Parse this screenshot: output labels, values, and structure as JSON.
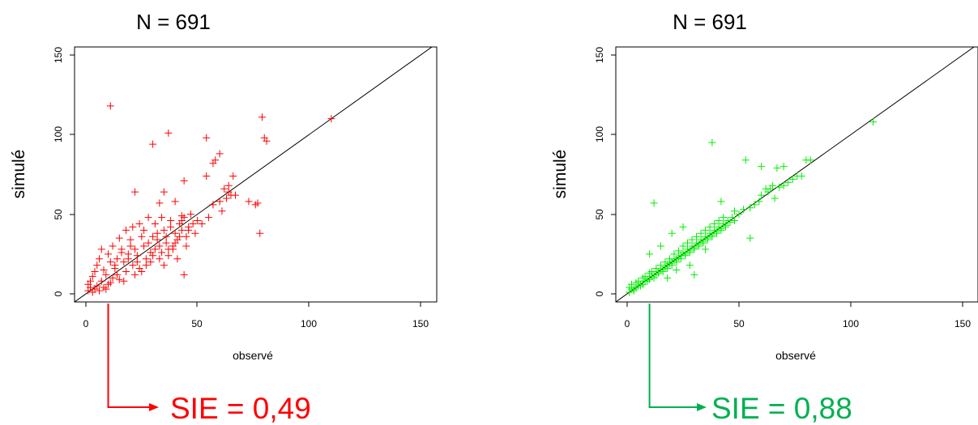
{
  "chart_data": [
    {
      "type": "scatter",
      "title": "N = 691",
      "xlabel": "observé",
      "ylabel": "simulé",
      "xlim": [
        0,
        150
      ],
      "ylim": [
        0,
        150
      ],
      "xticks": [
        "0",
        "50",
        "100",
        "150"
      ],
      "yticks": [
        "0",
        "50",
        "100",
        "150"
      ],
      "marker": "+",
      "color": "#ff0000",
      "reference_line": "y = x",
      "annotation": "SIE = 0,49",
      "annotation_color": "#ff0000",
      "annotation_anchor_x": 10,
      "points": [
        [
          1,
          2
        ],
        [
          2,
          4
        ],
        [
          3,
          1
        ],
        [
          1,
          6
        ],
        [
          4,
          3
        ],
        [
          2,
          8
        ],
        [
          5,
          5
        ],
        [
          3,
          11
        ],
        [
          6,
          2
        ],
        [
          4,
          14
        ],
        [
          7,
          8
        ],
        [
          5,
          18
        ],
        [
          8,
          4
        ],
        [
          6,
          22
        ],
        [
          9,
          12
        ],
        [
          7,
          28
        ],
        [
          10,
          6
        ],
        [
          8,
          15
        ],
        [
          11,
          20
        ],
        [
          9,
          3
        ],
        [
          12,
          10
        ],
        [
          10,
          25
        ],
        [
          13,
          16
        ],
        [
          11,
          7
        ],
        [
          14,
          22
        ],
        [
          12,
          30
        ],
        [
          15,
          9
        ],
        [
          13,
          18
        ],
        [
          16,
          26
        ],
        [
          14,
          12
        ],
        [
          17,
          20
        ],
        [
          15,
          35
        ],
        [
          18,
          14
        ],
        [
          16,
          28
        ],
        [
          19,
          22
        ],
        [
          17,
          8
        ],
        [
          20,
          30
        ],
        [
          18,
          40
        ],
        [
          21,
          18
        ],
        [
          19,
          25
        ],
        [
          22,
          12
        ],
        [
          20,
          34
        ],
        [
          23,
          24
        ],
        [
          21,
          42
        ],
        [
          24,
          16
        ],
        [
          22,
          28
        ],
        [
          25,
          36
        ],
        [
          23,
          20
        ],
        [
          26,
          30
        ],
        [
          24,
          44
        ],
        [
          27,
          22
        ],
        [
          25,
          14
        ],
        [
          28,
          32
        ],
        [
          26,
          40
        ],
        [
          29,
          26
        ],
        [
          27,
          18
        ],
        [
          30,
          36
        ],
        [
          28,
          48
        ],
        [
          31,
          28
        ],
        [
          29,
          20
        ],
        [
          32,
          38
        ],
        [
          30,
          24
        ],
        [
          33,
          30
        ],
        [
          31,
          44
        ],
        [
          34,
          26
        ],
        [
          32,
          34
        ],
        [
          35,
          40
        ],
        [
          33,
          22
        ],
        [
          36,
          32
        ],
        [
          34,
          48
        ],
        [
          37,
          28
        ],
        [
          35,
          18
        ],
        [
          38,
          42
        ],
        [
          36,
          36
        ],
        [
          39,
          30
        ],
        [
          37,
          24
        ],
        [
          40,
          38
        ],
        [
          38,
          46
        ],
        [
          41,
          34
        ],
        [
          39,
          28
        ],
        [
          42,
          44
        ],
        [
          40,
          32
        ],
        [
          43,
          40
        ],
        [
          41,
          22
        ],
        [
          44,
          48
        ],
        [
          42,
          36
        ],
        [
          45,
          30
        ],
        [
          43,
          46
        ],
        [
          46,
          42
        ],
        [
          44,
          12
        ],
        [
          47,
          50
        ],
        [
          46,
          40
        ],
        [
          48,
          44
        ],
        [
          45,
          36
        ],
        [
          50,
          46
        ],
        [
          49,
          38
        ],
        [
          52,
          44
        ],
        [
          55,
          48
        ],
        [
          57,
          56
        ],
        [
          60,
          58
        ],
        [
          62,
          66
        ],
        [
          61,
          52
        ],
        [
          63,
          60
        ],
        [
          64,
          68
        ],
        [
          65,
          62
        ],
        [
          66,
          74
        ],
        [
          64,
          64
        ],
        [
          67,
          62
        ],
        [
          58,
          84
        ],
        [
          60,
          88
        ],
        [
          54,
          74
        ],
        [
          54,
          98
        ],
        [
          57,
          82
        ],
        [
          44,
          71
        ],
        [
          37,
          101
        ],
        [
          30,
          94
        ],
        [
          40,
          58
        ],
        [
          35,
          64
        ],
        [
          43,
          49
        ],
        [
          33,
          57
        ],
        [
          76,
          56
        ],
        [
          78,
          38
        ],
        [
          77,
          57
        ],
        [
          73,
          58
        ],
        [
          79,
          111
        ],
        [
          81,
          96
        ],
        [
          80,
          98
        ],
        [
          110,
          110
        ],
        [
          11,
          118
        ],
        [
          22,
          64
        ]
      ]
    },
    {
      "type": "scatter",
      "title": "N = 691",
      "xlabel": "observé",
      "ylabel": "simulé",
      "xlim": [
        0,
        150
      ],
      "ylim": [
        0,
        150
      ],
      "xticks": [
        "0",
        "50",
        "100",
        "150"
      ],
      "yticks": [
        "0",
        "50",
        "100",
        "150"
      ],
      "marker": "+",
      "color": "#00ee00",
      "reference_line": "y = x",
      "annotation": "SIE = 0,88",
      "annotation_color": "#00b050",
      "annotation_anchor_x": 10,
      "points": [
        [
          1,
          1
        ],
        [
          2,
          3
        ],
        [
          3,
          2
        ],
        [
          1,
          4
        ],
        [
          4,
          4
        ],
        [
          2,
          6
        ],
        [
          5,
          5
        ],
        [
          3,
          3
        ],
        [
          6,
          6
        ],
        [
          4,
          7
        ],
        [
          7,
          6
        ],
        [
          5,
          8
        ],
        [
          8,
          8
        ],
        [
          6,
          5
        ],
        [
          9,
          9
        ],
        [
          7,
          10
        ],
        [
          10,
          9
        ],
        [
          8,
          11
        ],
        [
          11,
          11
        ],
        [
          9,
          8
        ],
        [
          12,
          12
        ],
        [
          10,
          13
        ],
        [
          13,
          12
        ],
        [
          11,
          14
        ],
        [
          14,
          14
        ],
        [
          12,
          10
        ],
        [
          15,
          15
        ],
        [
          13,
          16
        ],
        [
          16,
          15
        ],
        [
          14,
          13
        ],
        [
          17,
          17
        ],
        [
          15,
          18
        ],
        [
          18,
          18
        ],
        [
          16,
          14
        ],
        [
          19,
          19
        ],
        [
          17,
          20
        ],
        [
          20,
          20
        ],
        [
          18,
          16
        ],
        [
          21,
          21
        ],
        [
          19,
          22
        ],
        [
          22,
          22
        ],
        [
          20,
          18
        ],
        [
          23,
          23
        ],
        [
          21,
          25
        ],
        [
          24,
          24
        ],
        [
          22,
          20
        ],
        [
          25,
          26
        ],
        [
          23,
          27
        ],
        [
          26,
          25
        ],
        [
          24,
          22
        ],
        [
          27,
          28
        ],
        [
          25,
          30
        ],
        [
          28,
          27
        ],
        [
          26,
          24
        ],
        [
          29,
          30
        ],
        [
          27,
          32
        ],
        [
          30,
          29
        ],
        [
          28,
          26
        ],
        [
          31,
          32
        ],
        [
          29,
          34
        ],
        [
          32,
          31
        ],
        [
          30,
          28
        ],
        [
          33,
          34
        ],
        [
          31,
          36
        ],
        [
          34,
          33
        ],
        [
          32,
          30
        ],
        [
          35,
          36
        ],
        [
          33,
          38
        ],
        [
          36,
          35
        ],
        [
          34,
          32
        ],
        [
          37,
          38
        ],
        [
          35,
          40
        ],
        [
          38,
          37
        ],
        [
          36,
          34
        ],
        [
          39,
          40
        ],
        [
          37,
          42
        ],
        [
          40,
          39
        ],
        [
          38,
          36
        ],
        [
          41,
          42
        ],
        [
          39,
          44
        ],
        [
          42,
          41
        ],
        [
          40,
          38
        ],
        [
          43,
          44
        ],
        [
          41,
          46
        ],
        [
          44,
          43
        ],
        [
          42,
          40
        ],
        [
          45,
          46
        ],
        [
          43,
          48
        ],
        [
          46,
          45
        ],
        [
          44,
          42
        ],
        [
          47,
          48
        ],
        [
          48,
          46
        ],
        [
          50,
          50
        ],
        [
          52,
          53
        ],
        [
          55,
          54
        ],
        [
          57,
          56
        ],
        [
          59,
          58
        ],
        [
          60,
          62
        ],
        [
          62,
          66
        ],
        [
          63,
          64
        ],
        [
          64,
          66
        ],
        [
          65,
          68
        ],
        [
          66,
          60
        ],
        [
          68,
          67
        ],
        [
          70,
          68
        ],
        [
          72,
          70
        ],
        [
          74,
          72
        ],
        [
          76,
          74
        ],
        [
          78,
          74
        ],
        [
          80,
          84
        ],
        [
          82,
          84
        ],
        [
          110,
          108
        ],
        [
          38,
          95
        ],
        [
          53,
          84
        ],
        [
          60,
          80
        ],
        [
          55,
          35
        ],
        [
          48,
          52
        ],
        [
          42,
          58
        ],
        [
          70,
          80
        ],
        [
          67,
          79
        ],
        [
          12,
          57
        ],
        [
          25,
          42
        ],
        [
          15,
          30
        ],
        [
          20,
          38
        ],
        [
          18,
          10
        ],
        [
          30,
          12
        ],
        [
          28,
          18
        ],
        [
          22,
          15
        ],
        [
          35,
          28
        ],
        [
          10,
          25
        ]
      ]
    }
  ]
}
